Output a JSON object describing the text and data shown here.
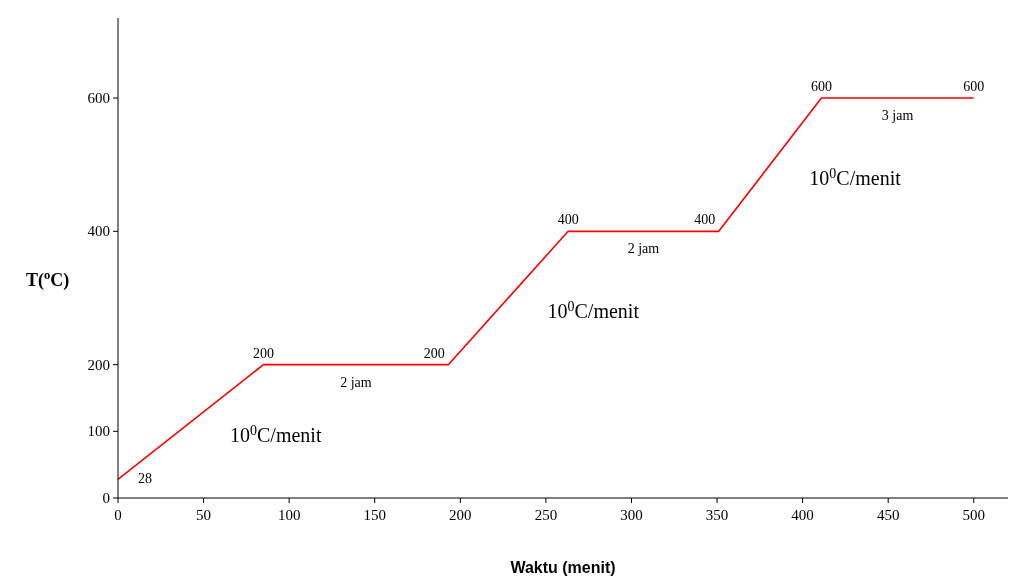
{
  "chart_data": {
    "type": "line",
    "xlabel": "Waktu (menit)",
    "ylabel": "T($^{o}$C)",
    "x": [
      0,
      85,
      193,
      263,
      351,
      411,
      500
    ],
    "series": [
      {
        "color": "#ff0000",
        "values": [
          28,
          200,
          200,
          400,
          400,
          600,
          600
        ]
      }
    ],
    "data_labels": true,
    "xlim": [
      0,
      520
    ],
    "xticks": [
      0,
      50,
      100,
      150,
      200,
      250,
      300,
      350,
      400,
      450,
      500
    ],
    "ylim": [
      0,
      720
    ],
    "yticks": [
      0,
      100,
      200,
      400,
      600
    ],
    "grid": false,
    "marker": "none",
    "line_style": "solid",
    "annotations": [
      "10$^{0}$C/menit",
      "2 jam",
      "10$^{0}$C/menit",
      "2 jam",
      "10$^{0}$C/menit",
      "3 jam"
    ]
  }
}
